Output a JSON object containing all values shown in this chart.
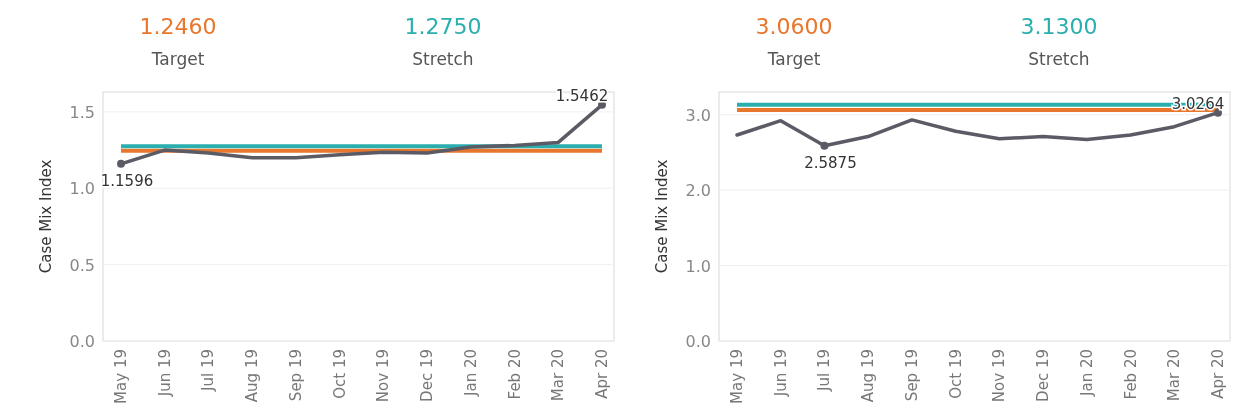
{
  "chart_data": [
    {
      "type": "line",
      "ylabel": "Case Mix Index",
      "categories": [
        "May 19",
        "Jun 19",
        "Jul 19",
        "Aug 19",
        "Sep 19",
        "Oct 19",
        "Nov 19",
        "Dec 19",
        "Jan 20",
        "Feb 20",
        "Mar 20",
        "Apr 20"
      ],
      "series": [
        {
          "color": "#5b5b66",
          "values": [
            1.1596,
            1.25,
            1.23,
            1.2,
            1.2,
            1.22,
            1.235,
            1.23,
            1.27,
            1.28,
            1.3,
            1.5462
          ],
          "value_labels": [
            "1.1596",
            null,
            null,
            null,
            null,
            null,
            null,
            null,
            null,
            null,
            null,
            "1.5462"
          ]
        }
      ],
      "ylim": [
        0,
        1.63
      ],
      "yticks": [
        {
          "value": 0,
          "label": "0.0"
        },
        0.5,
        {
          "value": 1,
          "label": "1.0"
        },
        1.5
      ],
      "grid": "y",
      "marker": "none",
      "line_style": "solid",
      "annotations": [
        "1.2460",
        "Target",
        "1.2750",
        "Stretch"
      ],
      "ref_lines": [
        {
          "axis": "y",
          "value": 1.246,
          "color": "#e8762c"
        },
        {
          "axis": "y",
          "value": 1.275,
          "color": "#2aaeae"
        }
      ]
    },
    {
      "type": "line",
      "ylabel": "Case Mix Index",
      "categories": [
        "May 19",
        "Jun 19",
        "Jul 19",
        "Aug 19",
        "Sep 19",
        "Oct 19",
        "Nov 19",
        "Dec 19",
        "Jan 20",
        "Feb 20",
        "Mar 20",
        "Apr 20"
      ],
      "series": [
        {
          "color": "#5b5b66",
          "values": [
            2.73,
            2.92,
            2.5875,
            2.71,
            2.93,
            2.78,
            2.68,
            2.71,
            2.67,
            2.73,
            2.84,
            3.0264
          ],
          "value_labels": [
            null,
            null,
            "2.5875",
            null,
            null,
            null,
            null,
            null,
            null,
            null,
            null,
            "3.0264"
          ]
        }
      ],
      "ylim": [
        0,
        3.3
      ],
      "yticks": [
        {
          "value": 0,
          "label": "0.0"
        },
        {
          "value": 1,
          "label": "1.0"
        },
        {
          "value": 2,
          "label": "2.0"
        },
        {
          "value": 3,
          "label": "3.0"
        }
      ],
      "grid": "y",
      "marker": "none",
      "line_style": "solid",
      "annotations": [
        "3.0600",
        "Target",
        "3.1300",
        "Stretch"
      ],
      "ref_lines": [
        {
          "axis": "y",
          "value": 3.06,
          "color": "#e8762c"
        },
        {
          "axis": "y",
          "value": 3.13,
          "color": "#2aaeae"
        }
      ]
    }
  ]
}
